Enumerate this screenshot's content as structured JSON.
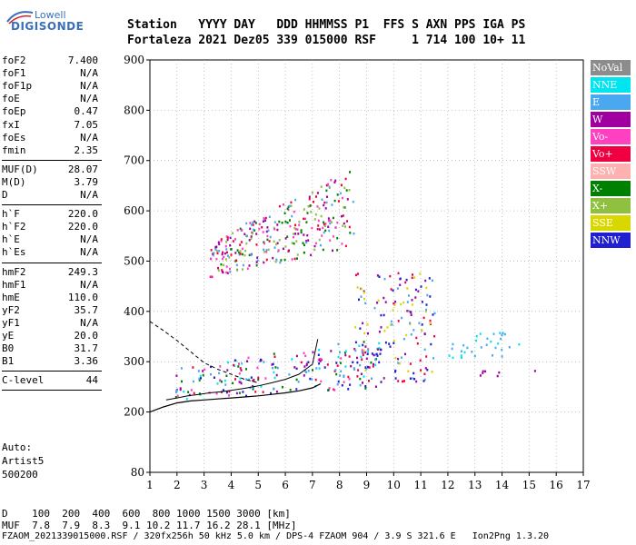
{
  "logo": {
    "brand_top": "Lowell",
    "brand_main": "DIGISONDE"
  },
  "header": {
    "line1": "Station   YYYY DAY   DDD HHMMSS P1  FFS S AXN PPS IGA PS",
    "line2": "Fortaleza 2021 Dez05 339 015000 RSF     1 714 100 10+ 11"
  },
  "params": [
    {
      "group": 0,
      "name": "foF2",
      "value": "7.400"
    },
    {
      "group": 0,
      "name": "foF1",
      "value": "N/A"
    },
    {
      "group": 0,
      "name": "foF1p",
      "value": "N/A"
    },
    {
      "group": 0,
      "name": "foE",
      "value": "N/A"
    },
    {
      "group": 0,
      "name": "foEp",
      "value": "0.47"
    },
    {
      "group": 0,
      "name": "fxI",
      "value": "7.05"
    },
    {
      "group": 0,
      "name": "foEs",
      "value": "N/A"
    },
    {
      "group": 0,
      "name": "fmin",
      "value": "2.35"
    },
    {
      "group": 1,
      "name": "MUF(D)",
      "value": "28.07"
    },
    {
      "group": 1,
      "name": "M(D)",
      "value": "3.79"
    },
    {
      "group": 1,
      "name": "D",
      "value": "N/A"
    },
    {
      "group": 2,
      "name": "h`F",
      "value": "220.0"
    },
    {
      "group": 2,
      "name": "h`F2",
      "value": "220.0"
    },
    {
      "group": 2,
      "name": "h`E",
      "value": "N/A"
    },
    {
      "group": 2,
      "name": "h`Es",
      "value": "N/A"
    },
    {
      "group": 3,
      "name": "hmF2",
      "value": "249.3"
    },
    {
      "group": 3,
      "name": "hmF1",
      "value": "N/A"
    },
    {
      "group": 3,
      "name": "hmE",
      "value": "110.0"
    },
    {
      "group": 3,
      "name": "yF2",
      "value": "35.7"
    },
    {
      "group": 3,
      "name": "yF1",
      "value": "N/A"
    },
    {
      "group": 3,
      "name": "yE",
      "value": "20.0"
    },
    {
      "group": 3,
      "name": "B0",
      "value": "31.7"
    },
    {
      "group": 3,
      "name": "B1",
      "value": "3.36"
    },
    {
      "group": 4,
      "name": "C-level",
      "value": "44"
    }
  ],
  "auto": {
    "label": "Auto:",
    "name": "Artist5",
    "version": "500200"
  },
  "legend": [
    {
      "label": "NoVal",
      "color": "#8c8c8c"
    },
    {
      "label": "NNE",
      "color": "#00e5f0"
    },
    {
      "label": "E",
      "color": "#4aa8f0"
    },
    {
      "label": "W",
      "color": "#a000a0"
    },
    {
      "label": "Vo-",
      "color": "#ff40c0"
    },
    {
      "label": "Vo+",
      "color": "#f00040"
    },
    {
      "label": "SSW",
      "color": "#ffb0b0"
    },
    {
      "label": "X-",
      "color": "#008000"
    },
    {
      "label": "X+",
      "color": "#90c040"
    },
    {
      "label": "SSE",
      "color": "#d8d800"
    },
    {
      "label": "NNW",
      "color": "#2020d0"
    }
  ],
  "bottom": {
    "d_line": "D    100  200  400  600  800 1000 1500 3000 [km]",
    "muf_line": "MUF  7.8  7.9  8.3  9.1 10.2 11.7 16.2 28.1 [MHz]",
    "file_line": "FZAOM_2021339015000.RSF / 320fx256h 50 kHz 5.0 km / DPS-4 FZAOM 904 / 3.9 S 321.6 E   Ion2Png 1.3.20"
  },
  "chart_data": {
    "type": "scatter",
    "title": "",
    "xlabel": "",
    "ylabel": "",
    "xlim": [
      1,
      17
    ],
    "ylim": [
      80,
      900
    ],
    "x_ticks": [
      1,
      2,
      3,
      4,
      5,
      6,
      7,
      8,
      9,
      10,
      11,
      12,
      13,
      14,
      15,
      16,
      17
    ],
    "y_ticks": [
      80,
      200,
      300,
      400,
      500,
      600,
      700,
      800,
      900
    ],
    "grid": true,
    "legend_position": "right",
    "trace_profile": {
      "x": [
        1.0,
        1.5,
        2.0,
        2.5,
        3.0,
        3.5,
        4.0,
        4.5,
        5.0,
        5.5,
        6.0,
        6.5,
        7.0,
        7.3
      ],
      "y": [
        200,
        210,
        218,
        222,
        224,
        226,
        228,
        230,
        232,
        235,
        238,
        242,
        248,
        256
      ]
    },
    "trace_upper": {
      "x": [
        1.6,
        2.0,
        2.4,
        2.8,
        3.2,
        3.6,
        4.0,
        4.5,
        5.0,
        5.5,
        6.0,
        6.5,
        7.0,
        7.2
      ],
      "y": [
        224,
        228,
        232,
        235,
        238,
        240,
        243,
        247,
        252,
        258,
        265,
        275,
        295,
        345
      ]
    },
    "trace_dashed": {
      "x": [
        1.0,
        1.5,
        2.0,
        2.5,
        3.0,
        3.5,
        4.0,
        4.5,
        5.0
      ],
      "y": [
        380,
        362,
        342,
        320,
        298,
        285,
        275,
        265,
        258
      ]
    },
    "echo_clusters": [
      {
        "name": "F-layer main trace",
        "x_range": [
          1.9,
          9.5
        ],
        "y_range": [
          225,
          340
        ],
        "colors": [
          "#f00040",
          "#ff40c0",
          "#a000a0",
          "#4aa8f0",
          "#2020d0",
          "#00e5f0",
          "#008000"
        ]
      },
      {
        "name": "second-hop trace",
        "x_range": [
          3.2,
          8.5
        ],
        "y_range": [
          460,
          690
        ],
        "colors": [
          "#a000a0",
          "#ff40c0",
          "#f00040",
          "#008000",
          "#4aa8f0",
          "#90c040"
        ]
      },
      {
        "name": "spread F",
        "x_range": [
          8.5,
          11.5
        ],
        "y_range": [
          260,
          480
        ],
        "colors": [
          "#2020d0",
          "#d8d800",
          "#4aa8f0",
          "#f00040",
          "#a000a0"
        ]
      },
      {
        "name": "oblique NNE",
        "x_range": [
          12.0,
          14.6
        ],
        "y_range": [
          310,
          360
        ],
        "colors": [
          "#00e5f0",
          "#4aa8f0"
        ]
      },
      {
        "name": "oblique W",
        "x_range": [
          13.0,
          15.3
        ],
        "y_range": [
          272,
          285
        ],
        "colors": [
          "#a000a0"
        ]
      }
    ]
  }
}
